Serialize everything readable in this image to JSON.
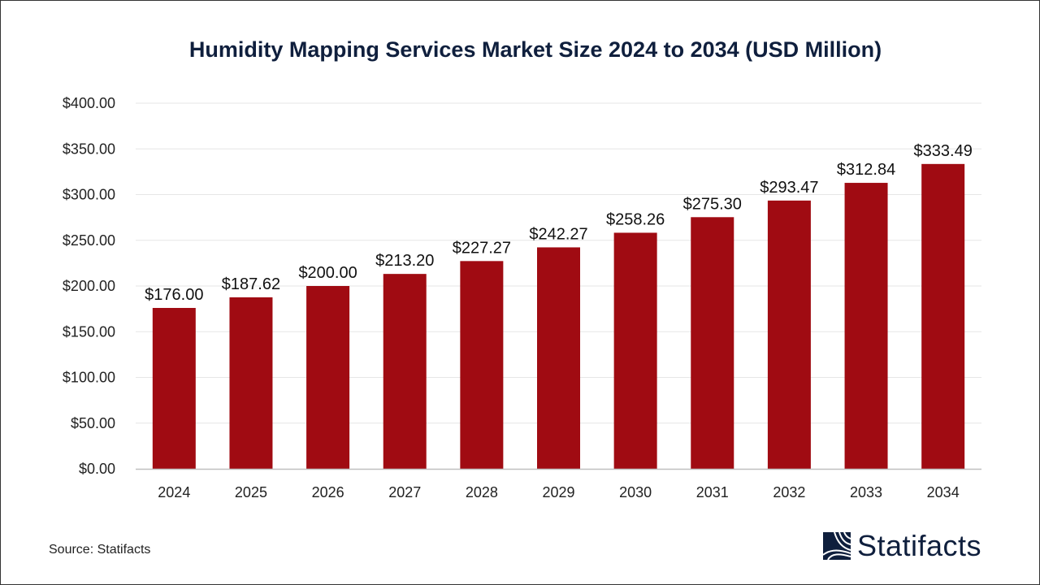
{
  "chart_data": {
    "type": "bar",
    "title": "Humidity Mapping Services Market Size 2024 to 2034 (USD Million)",
    "categories": [
      "2024",
      "2025",
      "2026",
      "2027",
      "2028",
      "2029",
      "2030",
      "2031",
      "2032",
      "2033",
      "2034"
    ],
    "values": [
      176.0,
      187.62,
      200.0,
      213.2,
      227.27,
      242.27,
      258.26,
      275.3,
      293.47,
      312.84,
      333.49
    ],
    "data_labels": [
      "$176.00",
      "$187.62",
      "$200.00",
      "$213.20",
      "$227.27",
      "$242.27",
      "$258.26",
      "$275.30",
      "$293.47",
      "$312.84",
      "$333.49"
    ],
    "yticks": [
      0,
      50,
      100,
      150,
      200,
      250,
      300,
      350,
      400
    ],
    "ytick_labels": [
      "$0.00",
      "$50.00",
      "$100.00",
      "$150.00",
      "$200.00",
      "$250.00",
      "$300.00",
      "$350.00",
      "$400.00"
    ],
    "ylim": [
      0,
      400
    ],
    "xlabel": "",
    "ylabel": "",
    "grid": true,
    "bar_color": "#a00b12"
  },
  "source": "Source: Statifacts",
  "logo": {
    "text": "Statifacts",
    "color": "#0f1f3d"
  }
}
